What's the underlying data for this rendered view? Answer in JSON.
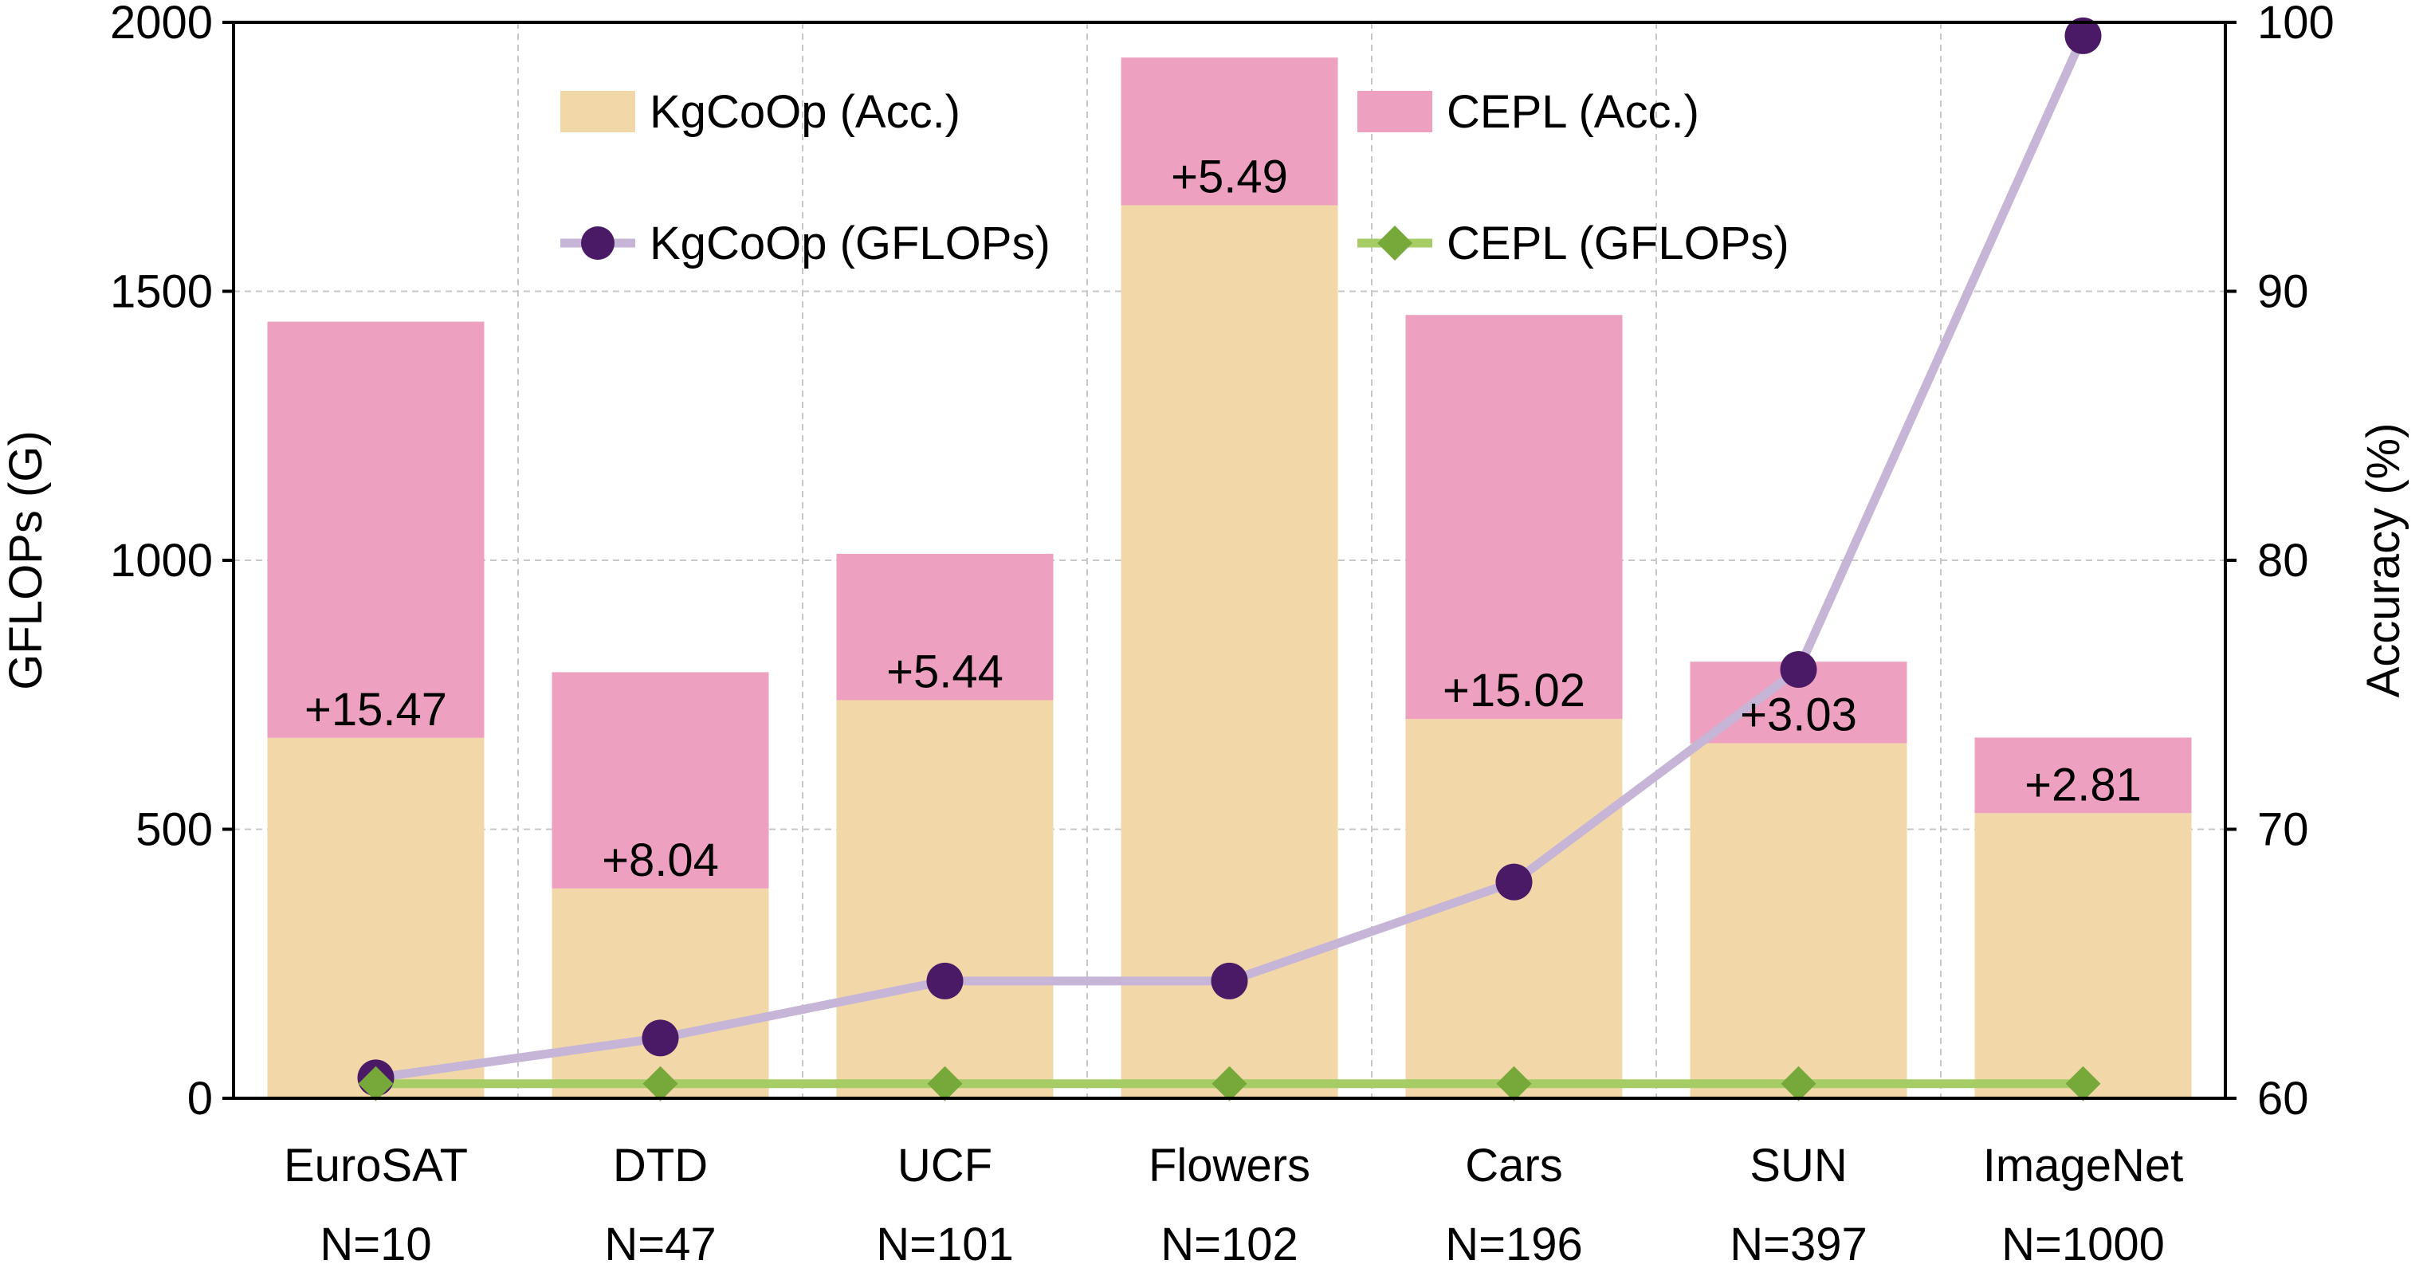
{
  "chart_data": {
    "type": "bar",
    "categories": [
      "EuroSAT",
      "DTD",
      "UCF",
      "Flowers",
      "Cars",
      "SUN",
      "ImageNet"
    ],
    "category_sublabels": [
      "N=10",
      "N=47",
      "N=101",
      "N=102",
      "N=196",
      "N=397",
      "N=1000"
    ],
    "left_axis": {
      "label": "GFLOPs (G)",
      "range": [
        0,
        2000
      ],
      "ticks": [
        "0",
        "500",
        "1000",
        "1500",
        "2000"
      ]
    },
    "right_axis": {
      "label": "Accuracy (%)",
      "range": [
        60,
        100
      ],
      "ticks": [
        "60",
        "70",
        "80",
        "90",
        "100"
      ]
    },
    "grid": true,
    "legend_position": "top",
    "bar_series": [
      {
        "name": "KgCoOp (Acc.)",
        "axis": "right",
        "color": "#F2D8A9",
        "values": [
          73.4,
          67.8,
          74.8,
          93.2,
          74.1,
          73.2,
          70.6
        ]
      },
      {
        "name": "CEPL (Acc.)",
        "axis": "right",
        "color": "#EDA0BF",
        "increments": [
          15.47,
          8.04,
          5.44,
          5.49,
          15.02,
          3.03,
          2.81
        ],
        "labels": [
          "+15.47",
          "+8.04",
          "+5.44",
          "+5.49",
          "+15.02",
          "+3.03",
          "+2.81"
        ]
      }
    ],
    "line_series": [
      {
        "name": "KgCoOp (GFLOPs)",
        "axis": "left",
        "line_color": "#C6B5D6",
        "marker_color": "#4A1A66",
        "marker": "circle",
        "values": [
          38,
          112,
          218,
          218,
          402,
          797,
          1975
        ]
      },
      {
        "name": "CEPL (GFLOPs)",
        "axis": "left",
        "line_color": "#A6CC66",
        "marker_color": "#76A83A",
        "marker": "diamond",
        "values": [
          27,
          27,
          27,
          27,
          27,
          27,
          27
        ]
      }
    ]
  }
}
